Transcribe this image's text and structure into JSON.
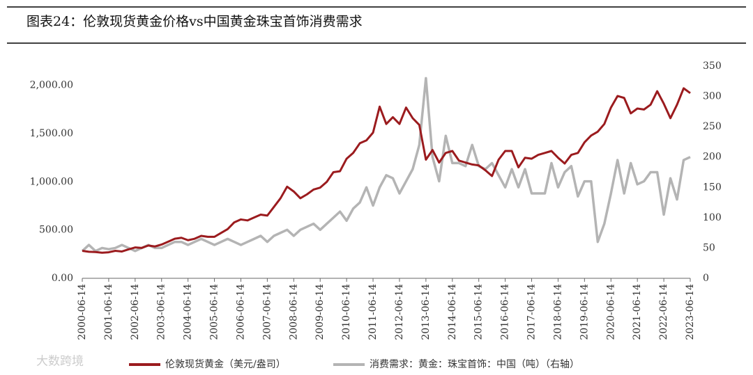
{
  "chart_data": {
    "type": "line",
    "title": "图表24：伦敦现货黄金价格vs中国黄金珠宝首饰消费需求",
    "watermark": "大数跨境",
    "x": [
      "2000-06-14",
      "2000-09-14",
      "2000-12-14",
      "2001-03-14",
      "2001-06-14",
      "2001-09-14",
      "2001-12-14",
      "2002-03-14",
      "2002-06-14",
      "2002-09-14",
      "2002-12-14",
      "2003-03-14",
      "2003-06-14",
      "2003-09-14",
      "2003-12-14",
      "2004-03-14",
      "2004-06-14",
      "2004-09-14",
      "2004-12-14",
      "2005-03-14",
      "2005-06-14",
      "2005-09-14",
      "2005-12-14",
      "2006-03-14",
      "2006-06-14",
      "2006-09-14",
      "2006-12-14",
      "2007-03-14",
      "2007-06-14",
      "2007-09-14",
      "2007-12-14",
      "2008-03-14",
      "2008-06-14",
      "2008-09-14",
      "2008-12-14",
      "2009-03-14",
      "2009-06-14",
      "2009-09-14",
      "2009-12-14",
      "2010-03-14",
      "2010-06-14",
      "2010-09-14",
      "2010-12-14",
      "2011-03-14",
      "2011-06-14",
      "2011-09-14",
      "2011-12-14",
      "2012-03-14",
      "2012-06-14",
      "2012-09-14",
      "2012-12-14",
      "2013-03-14",
      "2013-06-14",
      "2013-09-14",
      "2013-12-14",
      "2014-03-14",
      "2014-06-14",
      "2014-09-14",
      "2014-12-14",
      "2015-03-14",
      "2015-06-14",
      "2015-09-14",
      "2015-12-14",
      "2016-03-14",
      "2016-06-14",
      "2016-09-14",
      "2016-12-14",
      "2017-03-14",
      "2017-06-14",
      "2017-09-14",
      "2017-12-14",
      "2018-03-14",
      "2018-06-14",
      "2018-09-14",
      "2018-12-14",
      "2019-03-14",
      "2019-06-14",
      "2019-09-14",
      "2019-12-14",
      "2020-03-14",
      "2020-06-14",
      "2020-09-14",
      "2020-12-14",
      "2021-03-14",
      "2021-06-14",
      "2021-09-14",
      "2021-12-14",
      "2022-03-14",
      "2022-06-14",
      "2022-09-14",
      "2022-12-14",
      "2023-03-14",
      "2023-06-14"
    ],
    "xticks": [
      "2000-06-14",
      "2001-06-14",
      "2002-06-14",
      "2003-06-14",
      "2004-06-14",
      "2005-06-14",
      "2006-06-14",
      "2007-06-14",
      "2008-06-14",
      "2009-06-14",
      "2010-06-14",
      "2011-06-14",
      "2012-06-14",
      "2013-06-14",
      "2014-06-14",
      "2015-06-14",
      "2016-06-14",
      "2017-06-14",
      "2018-06-14",
      "2019-06-14",
      "2020-06-14",
      "2021-06-14",
      "2022-06-14",
      "2023-06-14"
    ],
    "series": [
      {
        "name": "伦敦现货黄金（美元/盎司）",
        "color": "#9b1b1e",
        "values": [
          285,
          275,
          272,
          265,
          270,
          285,
          278,
          300,
          320,
          315,
          340,
          330,
          350,
          380,
          410,
          420,
          395,
          410,
          440,
          430,
          430,
          470,
          510,
          580,
          610,
          600,
          630,
          660,
          650,
          740,
          830,
          950,
          900,
          830,
          870,
          920,
          940,
          1000,
          1100,
          1110,
          1240,
          1300,
          1400,
          1430,
          1510,
          1780,
          1600,
          1670,
          1600,
          1770,
          1660,
          1590,
          1230,
          1330,
          1200,
          1300,
          1320,
          1220,
          1200,
          1180,
          1170,
          1120,
          1060,
          1230,
          1320,
          1320,
          1150,
          1250,
          1240,
          1280,
          1300,
          1320,
          1250,
          1190,
          1280,
          1300,
          1410,
          1480,
          1520,
          1600,
          1770,
          1890,
          1870,
          1710,
          1760,
          1750,
          1800,
          1940,
          1810,
          1660,
          1800,
          1970,
          1920
        ]
      },
      {
        "name": "消费需求：黄金：珠宝首饰：中国（吨）（右轴）",
        "color": "#b4b4b4",
        "axis": "y2",
        "values": [
          45,
          55,
          45,
          50,
          48,
          50,
          55,
          50,
          45,
          50,
          55,
          50,
          50,
          55,
          60,
          60,
          55,
          60,
          65,
          60,
          55,
          60,
          65,
          60,
          55,
          60,
          65,
          70,
          60,
          70,
          75,
          80,
          70,
          80,
          85,
          90,
          80,
          90,
          100,
          110,
          95,
          115,
          125,
          150,
          120,
          150,
          170,
          165,
          140,
          160,
          180,
          220,
          330,
          200,
          160,
          235,
          190,
          190,
          185,
          220,
          185,
          180,
          190,
          170,
          150,
          180,
          150,
          180,
          140,
          140,
          140,
          190,
          150,
          175,
          185,
          135,
          160,
          160,
          60,
          90,
          140,
          195,
          140,
          190,
          155,
          160,
          175,
          175,
          105,
          165,
          130,
          195,
          200
        ]
      }
    ],
    "ylim": [
      0,
      2200
    ],
    "yticks": [
      {
        "value": 0,
        "label": "0.00"
      },
      {
        "value": 500,
        "label": "500.00"
      },
      {
        "value": 1000,
        "label": "1,000.00"
      },
      {
        "value": 1500,
        "label": "1,500.00"
      },
      {
        "value": 2000,
        "label": "2,000.00"
      }
    ],
    "y2lim": [
      0,
      350
    ],
    "y2ticks": [
      0,
      50,
      100,
      150,
      200,
      250,
      300,
      350
    ]
  }
}
